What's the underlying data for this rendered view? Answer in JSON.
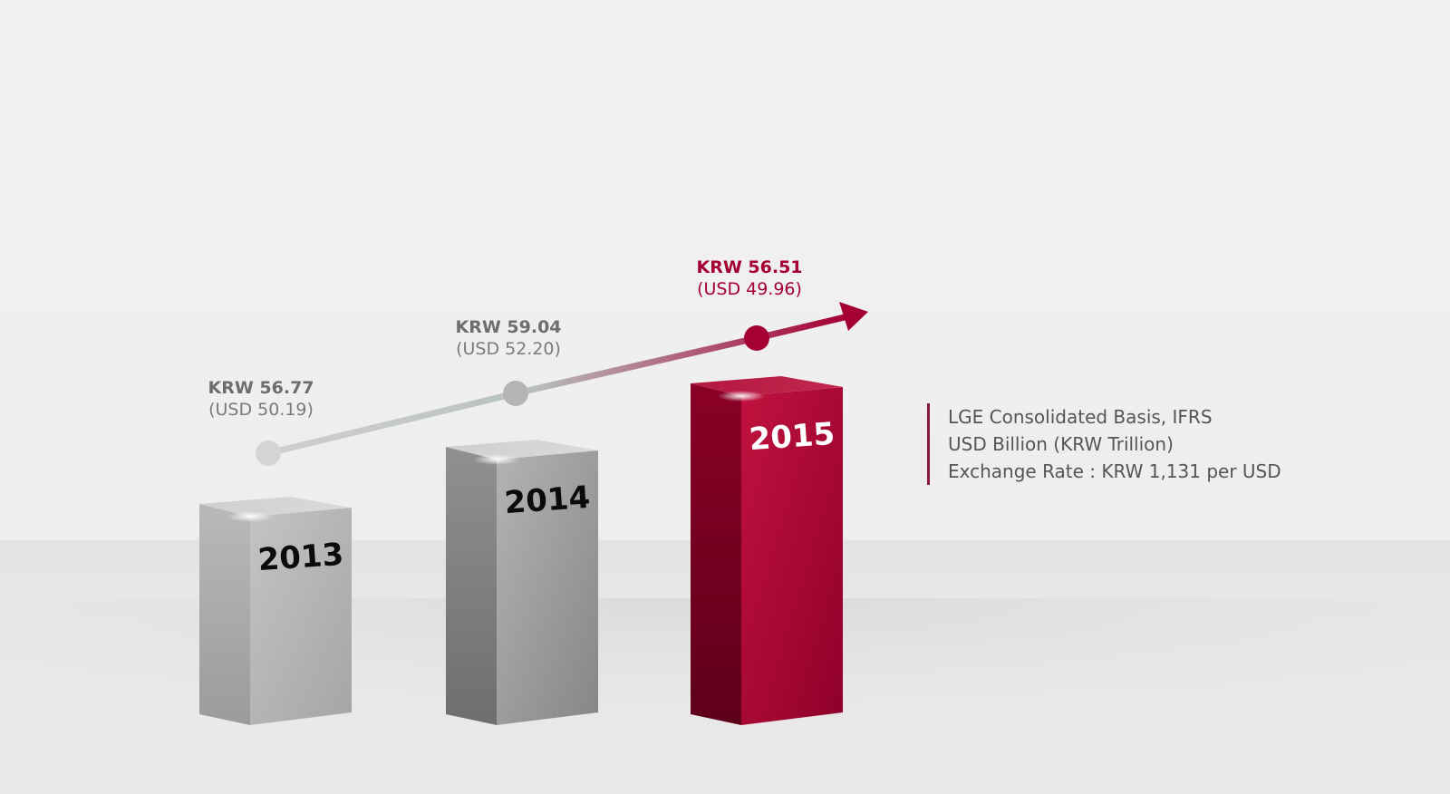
{
  "chart_data": {
    "type": "bar",
    "categories": [
      "2013",
      "2014",
      "2015"
    ],
    "series": [
      {
        "values": [
          56.77,
          59.04,
          56.51
        ],
        "krw_labels": [
          "KRW 56.77",
          "KRW 59.04",
          "KRW 56.51"
        ],
        "usd_labels": [
          "(USD 50.19)",
          "(USD 52.20)",
          "(USD 49.96)"
        ],
        "usd_values": [
          50.19,
          52.2,
          49.96
        ]
      }
    ],
    "highlight_index": 2,
    "colors": {
      "grey_bar": "#a8a8a8",
      "highlight_bar": "#a50034",
      "grey_text": "#6e6e6e",
      "highlight_text": "#a50034"
    },
    "notes": [
      "LGE Consolidated Basis, IFRS",
      "USD Billion (KRW Trillion)",
      "Exchange Rate : KRW 1,131 per USD"
    ]
  }
}
